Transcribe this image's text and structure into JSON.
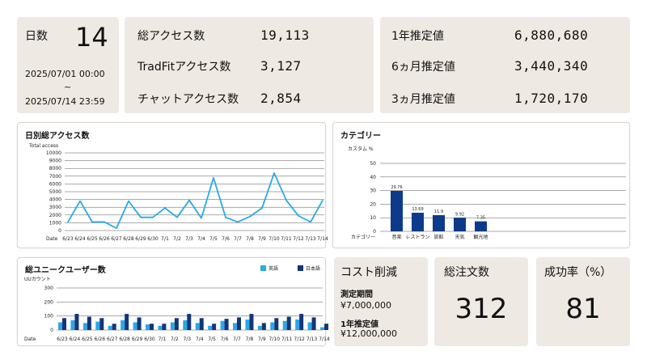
{
  "period": {
    "label": "日数",
    "value": "14",
    "start": "2025/07/01 00:00",
    "separator": "~",
    "end": "2025/07/14 23:59"
  },
  "access": {
    "rows": [
      {
        "label": "総アクセス数",
        "value": "19,113"
      },
      {
        "label": "TradFitアクセス数",
        "value": "3,127"
      },
      {
        "label": "チャットアクセス数",
        "value": "2,854"
      }
    ]
  },
  "estimates": {
    "rows": [
      {
        "label": "1年推定値",
        "value": "6,880,680"
      },
      {
        "label": "6ヵ月推定値",
        "value": "3,440,340"
      },
      {
        "label": "3ヵ月推定値",
        "value": "1,720,170"
      }
    ]
  },
  "daily_chart": {
    "title": "日別総アクセス数",
    "ylabel": "Total access",
    "xlabel": "Date",
    "color": "#29a9e8"
  },
  "category_chart": {
    "title": "カテゴリー",
    "ylabel": "カスタム %",
    "xlabel": "カテゴリー",
    "color": "#0d3a8a"
  },
  "unique_chart": {
    "title": "総ユニークユーザー数",
    "ylabel": "UUカウント",
    "xlabel": "Date",
    "legend": [
      {
        "name": "英語",
        "color": "#29a9e8"
      },
      {
        "name": "日本語",
        "color": "#14357a"
      }
    ]
  },
  "cost": {
    "title": "コスト削減",
    "period_label": "測定期間",
    "period_value": "¥7,000,000",
    "year_label": "1年推定値",
    "year_value": "¥12,000,000"
  },
  "orders": {
    "title": "総注文数",
    "value": "312"
  },
  "success": {
    "title": "成功率（%）",
    "value": "81"
  },
  "chart_data": [
    {
      "type": "line",
      "title": "日別総アクセス数",
      "xlabel": "Date",
      "ylabel": "Total access",
      "x": [
        "6/23",
        "6/24",
        "6/25",
        "6/26",
        "6/27",
        "6/28",
        "6/29",
        "6/30",
        "7/1",
        "7/2",
        "7/3",
        "7/4",
        "7/5",
        "7/6",
        "7/7",
        "7/8",
        "7/9",
        "7/10",
        "7/11",
        "7/12",
        "7/13",
        "7/14"
      ],
      "yticks": [
        0,
        1000,
        2000,
        3000,
        4000,
        5000,
        6000,
        7000,
        8000,
        9000,
        10000
      ],
      "ylim": [
        0,
        10000
      ],
      "series": [
        {
          "values": [
            1100,
            3800,
            1100,
            1100,
            300,
            3800,
            1700,
            1700,
            2900,
            1700,
            3900,
            1600,
            6800,
            1700,
            1100,
            1800,
            2900,
            7400,
            3900,
            1900,
            1100,
            3900
          ]
        }
      ],
      "grid": true
    },
    {
      "type": "bar",
      "title": "カテゴリー",
      "xlabel": "カテゴリー",
      "ylabel": "カスタム %",
      "categories": [
        "音楽",
        "レストラン",
        "旅館",
        "天気",
        "観光地"
      ],
      "values": [
        29.76,
        13.69,
        11.9,
        9.92,
        7.35
      ],
      "yticks": [
        0,
        10,
        20,
        30,
        40,
        50
      ],
      "ylim": [
        0,
        50
      ],
      "grid": true
    },
    {
      "type": "bar",
      "title": "総ユニークユーザー数",
      "xlabel": "Date",
      "ylabel": "UUカウント",
      "categories": [
        "6/23",
        "6/24",
        "6/25",
        "6/26",
        "6/27",
        "6/28",
        "6/29",
        "6/30",
        "7/1",
        "7/2",
        "7/3",
        "7/4",
        "7/5",
        "7/6",
        "7/7",
        "7/8",
        "7/9",
        "7/10",
        "7/11",
        "7/12",
        "7/13",
        "7/14"
      ],
      "yticks": [
        0,
        100,
        200,
        300
      ],
      "ylim": [
        0,
        300
      ],
      "series": [
        {
          "name": "英語",
          "values": [
            55,
            70,
            50,
            60,
            30,
            70,
            55,
            40,
            30,
            55,
            70,
            50,
            30,
            65,
            50,
            75,
            30,
            55,
            65,
            75,
            55,
            20
          ]
        },
        {
          "name": "日本語",
          "values": [
            85,
            115,
            95,
            85,
            45,
            115,
            90,
            45,
            45,
            85,
            115,
            85,
            45,
            80,
            90,
            115,
            50,
            85,
            95,
            115,
            90,
            45
          ]
        }
      ],
      "legend": "top-right",
      "grid": true
    }
  ]
}
